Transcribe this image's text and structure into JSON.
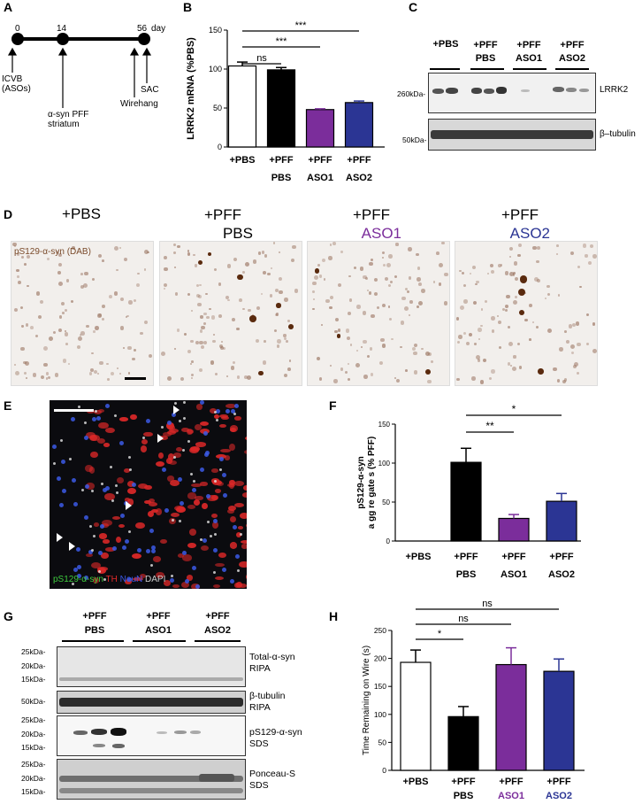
{
  "panels": {
    "A": {
      "letter": "A",
      "timepoints": [
        "0",
        "14",
        "56"
      ],
      "day_label": "day",
      "events": [
        "ICVB\n(ASOs)",
        "α-syn PFF\nstriatum",
        "Wirehang",
        "SAC"
      ]
    },
    "B": {
      "letter": "B",
      "sig": [
        "***",
        "***",
        "ns"
      ]
    },
    "C": {
      "letter": "C",
      "groups": [
        "+PBS",
        "+PFF\nPBS",
        "+PFF\nASO1",
        "+PFF\nASO2"
      ],
      "kda": [
        "260kDa-",
        "50kDa-"
      ],
      "bands": [
        "LRRK2",
        "β–tubulin"
      ]
    },
    "D": {
      "letter": "D",
      "titles": [
        {
          "line1": "+PBS",
          "line2": ""
        },
        {
          "line1": "+PFF",
          "line2": "PBS"
        },
        {
          "line1": "+PFF",
          "line2": "ASO1"
        },
        {
          "line1": "+PFF",
          "line2": "ASO2"
        }
      ],
      "stain": "pS129-α-syn (DAB)",
      "colors": {
        "aso1": "#7b2d9b",
        "aso2": "#2b3594"
      }
    },
    "E": {
      "letter": "E",
      "legend": [
        {
          "text": "pS129-α-syn",
          "color": "#3ecb3e"
        },
        {
          "text": "TH",
          "color": "#e22a2a"
        },
        {
          "text": "NeuN",
          "color": "#3a58e8"
        },
        {
          "text": "DAPI",
          "color": "#cfcfcf"
        }
      ]
    },
    "F": {
      "letter": "F",
      "sig": [
        "*",
        "**"
      ]
    },
    "G": {
      "letter": "G",
      "groups": [
        "+PFF\nPBS",
        "+PFF\nASO1",
        "+PFF\nASO2"
      ],
      "blots": [
        {
          "label": "Total-α-syn\nRIPA",
          "kda": [
            "25kDa-",
            "20kDa-",
            "15kDa-"
          ]
        },
        {
          "label": "β-tubulin\nRIPA",
          "kda": [
            "50kDa-"
          ]
        },
        {
          "label": "pS129-α-syn\nSDS",
          "kda": [
            "25kDa-",
            "20kDa-",
            "15kDa-"
          ]
        },
        {
          "label": "Ponceau-S\nSDS",
          "kda": [
            "25kDa-",
            "20kDa-",
            "15kDa-"
          ]
        }
      ]
    },
    "H": {
      "letter": "H",
      "sig": [
        "ns",
        "ns",
        "*"
      ]
    }
  },
  "chart_data": [
    {
      "type": "bar",
      "panel": "B",
      "ylabel": "LRRK2 mRNA (%PBS)",
      "categories": [
        "+PBS",
        "+PFF\nPBS",
        "+PFF\nASO1",
        "+PFF\nASO2"
      ],
      "values": [
        104,
        99,
        48,
        57
      ],
      "errors": [
        5,
        3,
        1,
        2
      ],
      "colors": [
        "#ffffff",
        "#000000",
        "#7b2d9b",
        "#2b3594"
      ],
      "ylim": [
        0,
        150
      ],
      "yticks": [
        0,
        50,
        100,
        150
      ],
      "comparisons": [
        {
          "from": 0,
          "to": 3,
          "label": "***"
        },
        {
          "from": 0,
          "to": 2,
          "label": "***"
        },
        {
          "from": 0,
          "to": 1,
          "label": "ns"
        }
      ]
    },
    {
      "type": "bar",
      "panel": "F",
      "ylabel": "pS129-α-syn\na gg re gate s (% PFF)",
      "categories": [
        "+PBS",
        "+PFF\nPBS",
        "+PFF\nASO1",
        "+PFF\nASO2"
      ],
      "values": [
        0,
        101,
        29,
        51
      ],
      "errors": [
        0,
        18,
        5,
        10
      ],
      "colors": [
        "#ffffff",
        "#000000",
        "#7b2d9b",
        "#2b3594"
      ],
      "ylim": [
        0,
        150
      ],
      "yticks": [
        0,
        50,
        100,
        150
      ],
      "comparisons": [
        {
          "from": 1,
          "to": 3,
          "label": "*"
        },
        {
          "from": 1,
          "to": 2,
          "label": "**"
        }
      ]
    },
    {
      "type": "bar",
      "panel": "H",
      "ylabel": "Time Remaining on Wire (s)",
      "categories": [
        "+PBS",
        "+PFF\nPBS",
        "+PFF\nASO1",
        "+PFF\nASO2"
      ],
      "values": [
        193,
        96,
        189,
        177
      ],
      "errors": [
        22,
        18,
        30,
        22
      ],
      "colors": [
        "#ffffff",
        "#000000",
        "#7b2d9b",
        "#2b3594"
      ],
      "ylim": [
        0,
        250
      ],
      "yticks": [
        0,
        50,
        100,
        150,
        200,
        250
      ],
      "comparisons": [
        {
          "from": 0,
          "to": 3,
          "label": "ns"
        },
        {
          "from": 0,
          "to": 2,
          "label": "ns"
        },
        {
          "from": 0,
          "to": 1,
          "label": "*"
        }
      ]
    }
  ]
}
